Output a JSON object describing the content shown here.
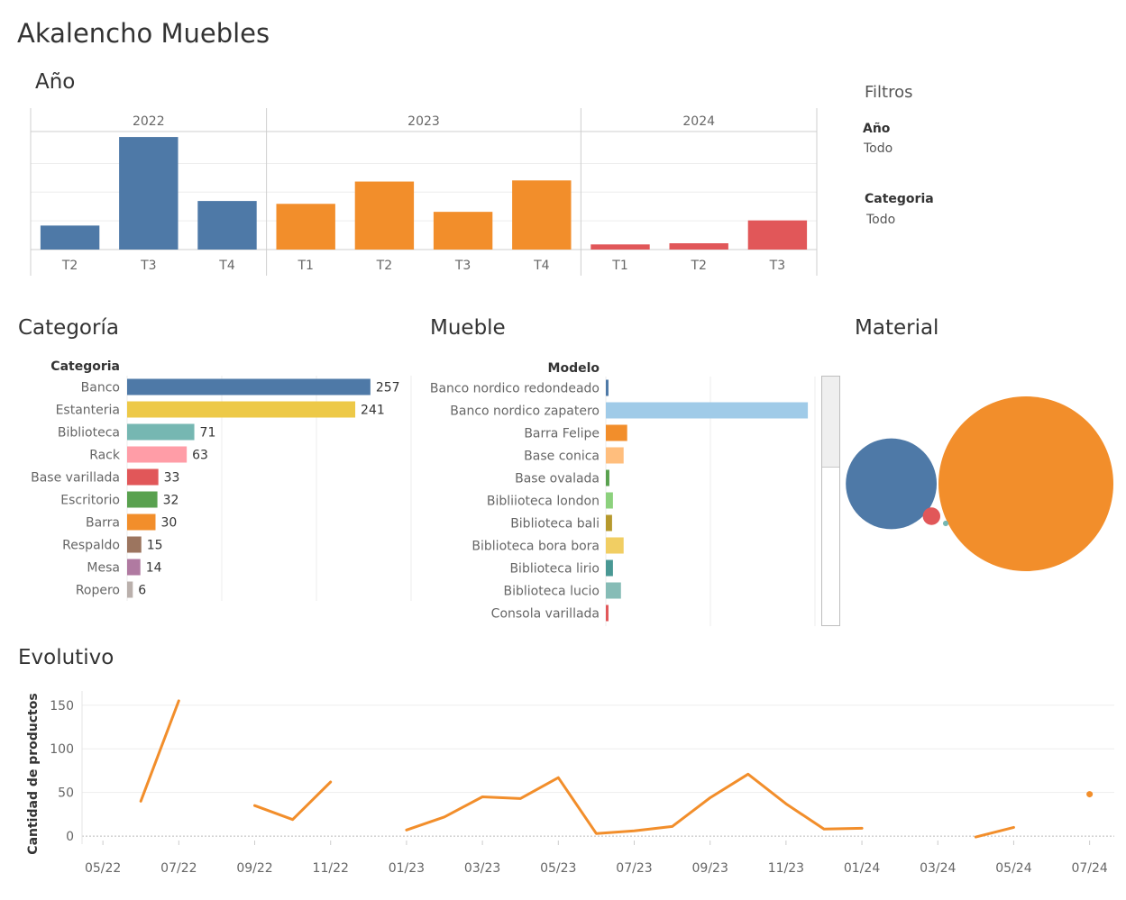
{
  "dashboard": {
    "title": "Akalencho Muebles"
  },
  "filters": {
    "title": "Filtros",
    "items": [
      {
        "label": "Año",
        "value": "Todo"
      },
      {
        "label": "Categoria",
        "value": "Todo"
      }
    ]
  },
  "sections": {
    "year": "Año",
    "category": "Categoría",
    "furniture": "Mueble",
    "material": "Material",
    "evolution": "Evolutivo"
  },
  "chart_data": [
    {
      "id": "year",
      "type": "bar",
      "groups": [
        {
          "name": "2022",
          "color": "#4e79a7",
          "categories": [
            "T2",
            "T3",
            "T4"
          ],
          "values": [
            42,
            197,
            85
          ]
        },
        {
          "name": "2023",
          "color": "#f28e2b",
          "categories": [
            "T1",
            "T2",
            "T3",
            "T4"
          ],
          "values": [
            80,
            119,
            66,
            121
          ]
        },
        {
          "name": "2024",
          "color": "#e15759",
          "categories": [
            "T1",
            "T2",
            "T3"
          ],
          "values": [
            9,
            11,
            51
          ]
        }
      ],
      "ylim": [
        0,
        205
      ],
      "grid": true
    },
    {
      "id": "category",
      "type": "bar",
      "orientation": "horizontal",
      "header": "Categoria",
      "categories": [
        "Banco",
        "Estanteria",
        "Biblioteca",
        "Rack",
        "Base varillada",
        "Escritorio",
        "Barra",
        "Respaldo",
        "Mesa",
        "Ropero"
      ],
      "values": [
        257,
        241,
        71,
        63,
        33,
        32,
        30,
        15,
        14,
        6
      ],
      "colors": [
        "#4e79a7",
        "#edc948",
        "#76b7b2",
        "#ff9da7",
        "#e15759",
        "#59a14f",
        "#f28e2b",
        "#9c755f",
        "#b07aa1",
        "#bab0ac"
      ],
      "xlim": [
        0,
        300
      ],
      "grid": true
    },
    {
      "id": "furniture",
      "type": "bar",
      "orientation": "horizontal",
      "header": "Modelo",
      "categories": [
        "Banco nordico redondeado",
        "Banco nordico zapatero",
        "Barra Felipe",
        "Base conica",
        "Base ovalada",
        "Bibliioteca london",
        "Biblioteca bali",
        "Biblioteca bora bora",
        "Biblioteca lirio",
        "Biblioteca lucio",
        "Consola varillada"
      ],
      "values": [
        3,
        227,
        24,
        20,
        4,
        8,
        7,
        20,
        8,
        17,
        3
      ],
      "colors": [
        "#4e79a7",
        "#a0cbe8",
        "#f28e2b",
        "#ffbe7d",
        "#59a14f",
        "#8cd17d",
        "#b6992d",
        "#f1ce63",
        "#499894",
        "#86bcb6",
        "#e15759"
      ],
      "xlim": [
        0,
        235
      ],
      "grid": true
    },
    {
      "id": "material",
      "type": "bubble",
      "items": [
        {
          "value": 100,
          "color": "#f28e2b"
        },
        {
          "value": 27,
          "color": "#4e79a7"
        },
        {
          "value": 1,
          "color": "#e15759"
        },
        {
          "value": 0.1,
          "color": "#76b7b2"
        }
      ]
    },
    {
      "id": "evolution",
      "type": "line",
      "ylabel": "Cantidad de productos",
      "yticks": [
        0,
        50,
        100,
        150
      ],
      "ylim": [
        -3,
        158
      ],
      "xticks": [
        "05/22",
        "07/22",
        "09/22",
        "11/22",
        "01/23",
        "03/23",
        "05/23",
        "07/23",
        "09/23",
        "11/23",
        "01/24",
        "03/24",
        "05/24",
        "07/24"
      ],
      "xlim": [
        -0.55,
        26.65
      ],
      "color": "#f28e2b",
      "grid": true,
      "segments": [
        [
          [
            1,
            40
          ],
          [
            2,
            155
          ]
        ],
        [
          [
            4,
            35
          ],
          [
            5,
            19
          ],
          [
            6,
            62
          ]
        ],
        [
          [
            8,
            7
          ],
          [
            9,
            22
          ],
          [
            10,
            45
          ],
          [
            11,
            43
          ],
          [
            12,
            67
          ],
          [
            13,
            3
          ],
          [
            14,
            6
          ],
          [
            15,
            11
          ],
          [
            16,
            44
          ],
          [
            17,
            71
          ],
          [
            18,
            37
          ],
          [
            19,
            8
          ],
          [
            20,
            9
          ]
        ],
        [
          [
            23,
            -1
          ],
          [
            24,
            10
          ]
        ]
      ],
      "points": [
        [
          26,
          48
        ]
      ]
    }
  ]
}
